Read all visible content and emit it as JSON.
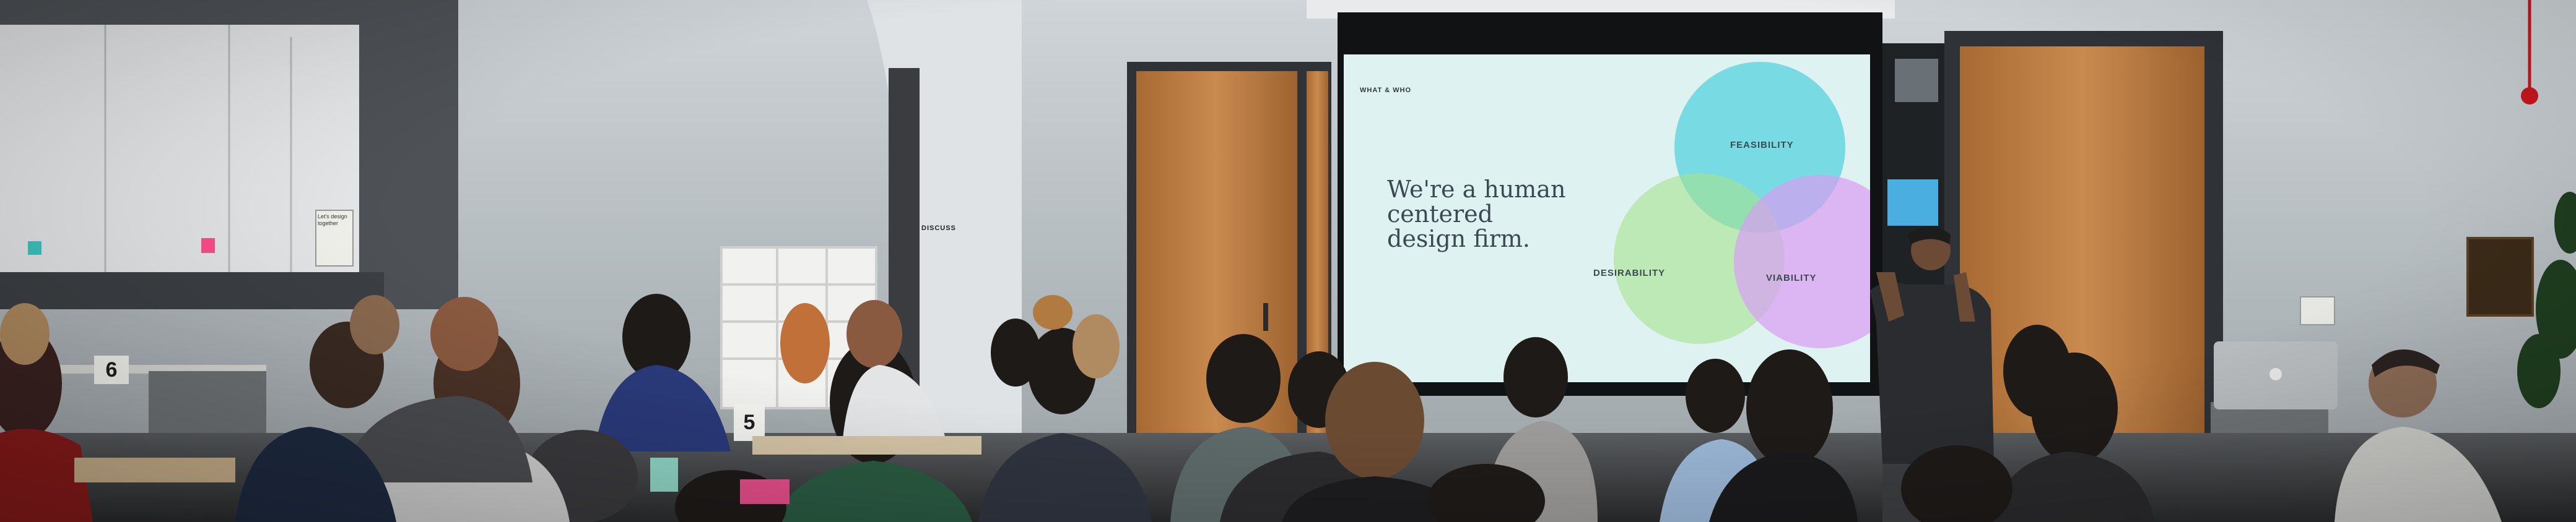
{
  "photo": {
    "subject": "Presenter speaking in front of a projected slide to a seated audience in an office workshop space"
  },
  "slide": {
    "kicker": "WHAT & WHO",
    "headline_line1": "We're a human",
    "headline_line2": "centered",
    "headline_line3": "design firm.",
    "circles": [
      {
        "label": "FEASIBILITY",
        "color": "#23c6d6"
      },
      {
        "label": "DESIRABILITY",
        "color": "#a6e38f"
      },
      {
        "label": "VIABILITY",
        "color": "#d99cf2"
      }
    ],
    "background": "#dff2f2"
  },
  "room": {
    "wall_sign": "DISCUSS",
    "table_numbers": [
      "6",
      "5"
    ],
    "wall_note_1": "Let's design together"
  },
  "colors": {
    "wall": "#bcc4c8",
    "ceiling": "#d7dde0",
    "door": "#b8793f",
    "presenter_shirt": "#2a2c30"
  }
}
